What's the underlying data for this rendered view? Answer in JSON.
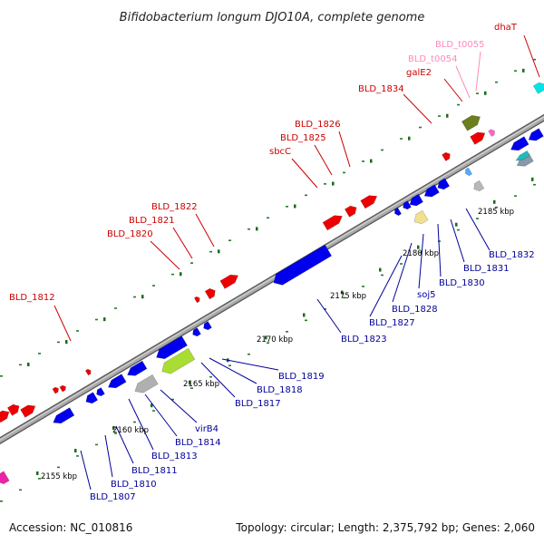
{
  "title": "Bifidobacterium longum DJO10A, complete genome",
  "footer": {
    "accession": "Accession: NC_010816",
    "info": "Topology: circular; Length: 2,375,792 bp; Genes: 2,060"
  },
  "colors": {
    "forward_label": "#cc0000",
    "reverse_label": "#000099",
    "trna_label": "#ff88bb",
    "forward_gene": "#ee0000",
    "reverse_gene": "#0000ee",
    "backbone": "#9a9a9a",
    "dots": "#228822"
  },
  "ticks": [
    {
      "label": "2155 kbp"
    },
    {
      "label": "2160 kbp"
    },
    {
      "label": "2165 kbp"
    },
    {
      "label": "2170 kbp"
    },
    {
      "label": "2175 kbp"
    },
    {
      "label": "2180 kbp"
    },
    {
      "label": "2185 kbp"
    }
  ],
  "forward_labels": [
    {
      "text": "BLD_1812"
    },
    {
      "text": "BLD_1820"
    },
    {
      "text": "BLD_1821"
    },
    {
      "text": "BLD_1822"
    },
    {
      "text": "sbcC"
    },
    {
      "text": "BLD_1825"
    },
    {
      "text": "BLD_1826"
    },
    {
      "text": "BLD_1834"
    },
    {
      "text": "galE2"
    },
    {
      "text": "BLD_t0054"
    },
    {
      "text": "BLD_t0055"
    },
    {
      "text": "dhaT"
    }
  ],
  "reverse_labels": [
    {
      "text": "BLD_1807"
    },
    {
      "text": "BLD_1810"
    },
    {
      "text": "BLD_1811"
    },
    {
      "text": "BLD_1813"
    },
    {
      "text": "BLD_1814"
    },
    {
      "text": "virB4"
    },
    {
      "text": "BLD_1817"
    },
    {
      "text": "BLD_1818"
    },
    {
      "text": "BLD_1819"
    },
    {
      "text": "BLD_1823"
    },
    {
      "text": "BLD_1827"
    },
    {
      "text": "BLD_1828"
    },
    {
      "text": "soj5"
    },
    {
      "text": "BLD_1830"
    },
    {
      "text": "BLD_1831"
    },
    {
      "text": "BLD_1832"
    }
  ]
}
